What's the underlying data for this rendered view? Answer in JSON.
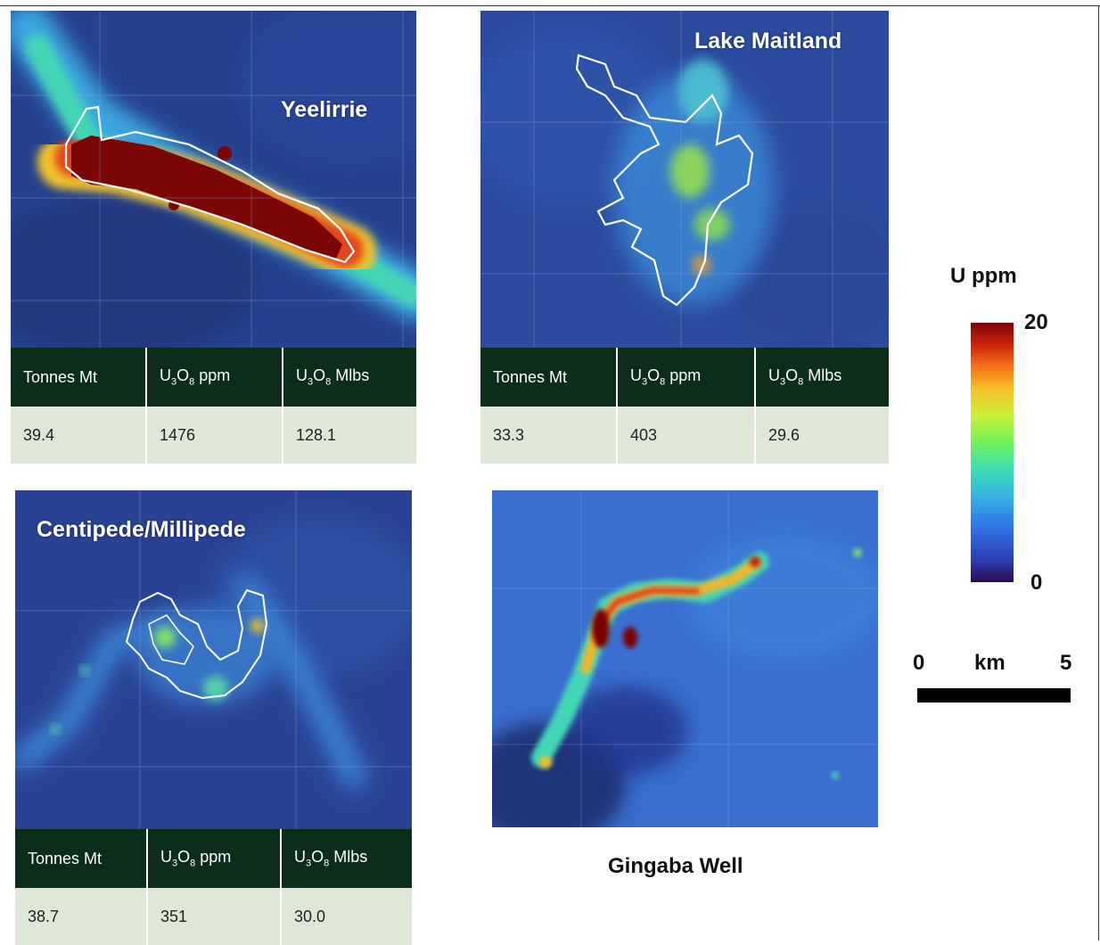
{
  "maps": {
    "yeelirrie": {
      "title": "Yeelirrie",
      "table": {
        "headers": [
          "Tonnes Mt",
          "U3O8 ppm",
          "U3O8 Mlbs"
        ],
        "values": [
          "39.4",
          "1476",
          "128.1"
        ]
      }
    },
    "lake_maitland": {
      "title": "Lake Maitland",
      "table": {
        "headers": [
          "Tonnes Mt",
          "U3O8 ppm",
          "U3O8 Mlbs"
        ],
        "values": [
          "33.3",
          "403",
          "29.6"
        ]
      }
    },
    "centipede": {
      "title": "Centipede/Millipede",
      "table": {
        "headers": [
          "Tonnes Mt",
          "U3O8 ppm",
          "U3O8 Mlbs"
        ],
        "values": [
          "38.7",
          "351",
          "30.0"
        ]
      }
    },
    "gingaba": {
      "title": "Gingaba Well"
    }
  },
  "legend": {
    "title": "U ppm",
    "max": "20",
    "min": "0",
    "colors": [
      "#2a0a4a",
      "#2c3bb0",
      "#2f78e8",
      "#38b6e0",
      "#3fe0b0",
      "#72f25a",
      "#c8f13a",
      "#f5c42a",
      "#f36a18",
      "#c82008",
      "#7a0606"
    ]
  },
  "scale": {
    "start": "0",
    "unit": "km",
    "end": "5"
  }
}
